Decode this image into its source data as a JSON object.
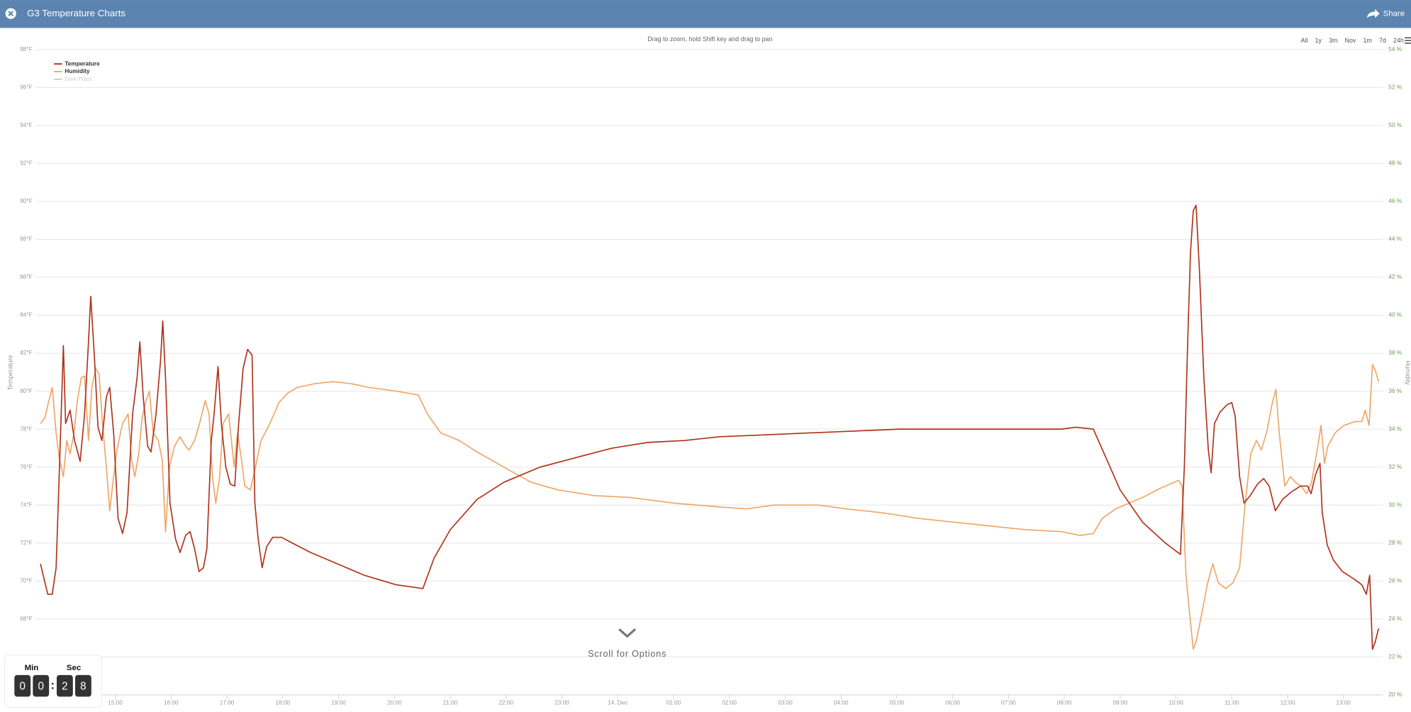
{
  "header": {
    "title": "G3 Temperature Charts",
    "share": "Share"
  },
  "range_buttons": [
    "All",
    "1y",
    "3m",
    "Nov",
    "1m",
    "7d",
    "24h"
  ],
  "scroll_hint": "Scroll for Options",
  "timer": {
    "min_label": "Min",
    "sec_label": "Sec",
    "digits": [
      "0",
      "0",
      "2",
      "8"
    ]
  },
  "chart_data": {
    "type": "line",
    "subtitle": "Drag to zoom, hold Shift key and drag to pan",
    "y_label": "Temperature",
    "y2_label": "Humidity",
    "grid": true,
    "legend": "top-left",
    "xlim": [
      13.66,
      37.63
    ],
    "xticks": [
      {
        "value": 15,
        "label": "15:00"
      },
      {
        "value": 16,
        "label": "16:00"
      },
      {
        "value": 17,
        "label": "17:00"
      },
      {
        "value": 18,
        "label": "18:00"
      },
      {
        "value": 19,
        "label": "19:00"
      },
      {
        "value": 20,
        "label": "20:00"
      },
      {
        "value": 21,
        "label": "21:00"
      },
      {
        "value": 22,
        "label": "22:00"
      },
      {
        "value": 23,
        "label": "23:00"
      },
      {
        "value": 24,
        "label": "14. Dec"
      },
      {
        "value": 25,
        "label": "01:00"
      },
      {
        "value": 26,
        "label": "02:00"
      },
      {
        "value": 27,
        "label": "03:00"
      },
      {
        "value": 28,
        "label": "04:00"
      },
      {
        "value": 29,
        "label": "05:00"
      },
      {
        "value": 30,
        "label": "06:00"
      },
      {
        "value": 31,
        "label": "07:00"
      },
      {
        "value": 32,
        "label": "08:00"
      },
      {
        "value": 33,
        "label": "09:00"
      },
      {
        "value": 34,
        "label": "10:00"
      },
      {
        "value": 35,
        "label": "11:00"
      },
      {
        "value": 36,
        "label": "12:00"
      },
      {
        "value": 37,
        "label": "13:00"
      }
    ],
    "ylim": [
      64,
      98
    ],
    "yticks": [
      {
        "value": 68,
        "label": "68°F"
      },
      {
        "value": 70,
        "label": "70°F"
      },
      {
        "value": 72,
        "label": "72°F"
      },
      {
        "value": 74,
        "label": "74°F"
      },
      {
        "value": 76,
        "label": "76°F"
      },
      {
        "value": 78,
        "label": "78°F"
      },
      {
        "value": 80,
        "label": "80°F"
      },
      {
        "value": 82,
        "label": "82°F"
      },
      {
        "value": 84,
        "label": "84°F"
      },
      {
        "value": 86,
        "label": "86°F"
      },
      {
        "value": 88,
        "label": "88°F"
      },
      {
        "value": 90,
        "label": "90°F"
      },
      {
        "value": 92,
        "label": "92°F"
      },
      {
        "value": 94,
        "label": "94°F"
      },
      {
        "value": 96,
        "label": "96°F"
      },
      {
        "value": 98,
        "label": "98°F"
      }
    ],
    "y2lim": [
      20,
      54
    ],
    "y2ticks": [
      {
        "value": 20,
        "label": "20 %"
      },
      {
        "value": 22,
        "label": "22 %"
      },
      {
        "value": 24,
        "label": "24 %"
      },
      {
        "value": 26,
        "label": "26 %"
      },
      {
        "value": 28,
        "label": "28 %"
      },
      {
        "value": 30,
        "label": "30 %"
      },
      {
        "value": 32,
        "label": "32 %"
      },
      {
        "value": 34,
        "label": "34 %"
      },
      {
        "value": 36,
        "label": "36 %"
      },
      {
        "value": 38,
        "label": "38 %"
      },
      {
        "value": 40,
        "label": "40 %"
      },
      {
        "value": 42,
        "label": "42 %"
      },
      {
        "value": 44,
        "label": "44 %"
      },
      {
        "value": 46,
        "label": "46 %"
      },
      {
        "value": 48,
        "label": "48 %"
      },
      {
        "value": 50,
        "label": "50 %"
      },
      {
        "value": 52,
        "label": "52 %"
      },
      {
        "value": 54,
        "label": "54 %"
      }
    ],
    "series": [
      {
        "name": "Temperature",
        "color": "#b0301a",
        "axis": "y",
        "x": [
          13.66,
          13.79,
          13.87,
          13.94,
          14.0,
          14.07,
          14.11,
          14.19,
          14.27,
          14.37,
          14.45,
          14.52,
          14.56,
          14.63,
          14.69,
          14.76,
          14.84,
          14.9,
          14.97,
          15.05,
          15.13,
          15.21,
          15.31,
          15.39,
          15.44,
          15.5,
          15.58,
          15.64,
          15.73,
          15.81,
          15.85,
          15.9,
          15.98,
          16.08,
          16.16,
          16.26,
          16.34,
          16.42,
          16.5,
          16.58,
          16.64,
          16.72,
          16.77,
          16.84,
          16.9,
          16.98,
          17.06,
          17.14,
          17.21,
          17.29,
          17.37,
          17.45,
          17.5,
          17.56,
          17.63,
          17.71,
          17.82,
          17.98,
          18.17,
          18.5,
          18.98,
          19.46,
          20.03,
          20.51,
          20.71,
          21.0,
          21.48,
          21.96,
          22.61,
          23.25,
          23.9,
          24.54,
          25.19,
          25.83,
          26.64,
          27.44,
          28.25,
          29.05,
          29.86,
          30.66,
          31.47,
          31.95,
          32.2,
          32.52,
          32.76,
          33.0,
          33.4,
          33.81,
          34.08,
          34.15,
          34.21,
          34.26,
          34.31,
          34.36,
          34.42,
          34.5,
          34.58,
          34.63,
          34.69,
          34.79,
          34.92,
          35.0,
          35.06,
          35.14,
          35.22,
          35.33,
          35.46,
          35.57,
          35.67,
          35.78,
          35.91,
          36.07,
          36.23,
          36.36,
          36.42,
          36.5,
          36.58,
          36.62,
          36.71,
          36.82,
          36.98,
          37.19,
          37.33,
          37.41,
          37.47,
          37.52,
          37.57,
          37.63
        ],
        "values": [
          70.9,
          69.3,
          69.3,
          70.7,
          76.0,
          82.4,
          78.3,
          79.0,
          77.4,
          76.3,
          78.8,
          82.6,
          85.0,
          81.6,
          78.1,
          77.4,
          79.7,
          80.2,
          77.8,
          73.3,
          72.5,
          73.6,
          78.8,
          80.7,
          82.6,
          79.7,
          77.1,
          76.8,
          78.8,
          81.6,
          83.7,
          80.7,
          74.1,
          72.2,
          71.5,
          72.4,
          72.6,
          71.7,
          70.5,
          70.7,
          71.7,
          77.4,
          78.8,
          81.3,
          78.3,
          76.0,
          75.1,
          75.0,
          78.3,
          81.2,
          82.2,
          81.9,
          74.1,
          72.2,
          70.7,
          71.8,
          72.3,
          72.3,
          72.0,
          71.5,
          70.9,
          70.3,
          69.8,
          69.6,
          71.2,
          72.7,
          74.3,
          75.2,
          76.0,
          76.5,
          77.0,
          77.3,
          77.4,
          77.6,
          77.7,
          77.8,
          77.9,
          78.0,
          78.0,
          78.0,
          78.0,
          78.0,
          78.1,
          78.0,
          76.4,
          74.8,
          73.1,
          72.0,
          71.4,
          76.0,
          82.6,
          87.3,
          89.5,
          89.8,
          86.4,
          80.7,
          76.9,
          75.7,
          78.3,
          78.9,
          79.3,
          79.4,
          78.7,
          75.5,
          74.1,
          74.5,
          75.1,
          75.4,
          75.0,
          73.7,
          74.3,
          74.7,
          75.0,
          75.0,
          74.6,
          75.6,
          76.2,
          73.6,
          71.9,
          71.1,
          70.5,
          70.1,
          69.8,
          69.3,
          70.3,
          66.4,
          66.8,
          67.5
        ]
      },
      {
        "name": "Humidity",
        "color": "#eda665",
        "axis": "y2",
        "x": [
          13.66,
          13.74,
          13.81,
          13.87,
          13.94,
          14.0,
          14.07,
          14.13,
          14.19,
          14.26,
          14.32,
          14.39,
          14.45,
          14.52,
          14.58,
          14.65,
          14.71,
          14.77,
          14.84,
          14.9,
          14.97,
          15.03,
          15.13,
          15.23,
          15.29,
          15.35,
          15.42,
          15.48,
          15.55,
          15.61,
          15.68,
          15.77,
          15.84,
          15.9,
          15.97,
          16.06,
          16.16,
          16.26,
          16.32,
          16.42,
          16.51,
          16.61,
          16.68,
          16.74,
          16.8,
          16.87,
          16.93,
          17.03,
          17.13,
          17.19,
          17.26,
          17.32,
          17.42,
          17.51,
          17.61,
          17.77,
          17.93,
          18.09,
          18.26,
          18.58,
          18.9,
          19.22,
          19.54,
          20.03,
          20.43,
          20.59,
          20.83,
          21.16,
          21.48,
          21.96,
          22.45,
          22.93,
          23.57,
          24.22,
          25.02,
          25.83,
          26.31,
          26.8,
          27.6,
          28.09,
          28.73,
          29.38,
          30.02,
          30.66,
          31.31,
          31.95,
          32.28,
          32.52,
          32.68,
          32.92,
          33.4,
          33.73,
          34.05,
          34.11,
          34.18,
          34.24,
          34.31,
          34.37,
          34.47,
          34.56,
          34.66,
          34.76,
          34.89,
          35.02,
          35.14,
          35.24,
          35.34,
          35.44,
          35.53,
          35.63,
          35.72,
          35.79,
          35.85,
          35.95,
          36.05,
          36.14,
          36.24,
          36.34,
          36.43,
          36.53,
          36.6,
          36.66,
          36.72,
          36.85,
          37.01,
          37.21,
          37.33,
          37.39,
          37.46,
          37.52,
          37.57,
          37.63
        ],
        "values": [
          34.3,
          34.6,
          35.5,
          36.2,
          33.8,
          32.4,
          31.5,
          33.4,
          32.7,
          33.8,
          35.5,
          36.7,
          36.8,
          33.4,
          36.2,
          37.2,
          36.9,
          34.3,
          32.0,
          29.7,
          31.5,
          32.9,
          34.3,
          34.8,
          32.4,
          31.5,
          32.7,
          34.6,
          35.5,
          36.0,
          33.8,
          33.4,
          32.4,
          28.6,
          32.0,
          33.1,
          33.6,
          33.1,
          32.9,
          33.4,
          34.3,
          35.5,
          34.8,
          31.5,
          30.1,
          31.5,
          34.3,
          34.8,
          32.0,
          33.8,
          32.4,
          31.0,
          30.8,
          32.0,
          33.4,
          34.3,
          35.4,
          35.9,
          36.2,
          36.4,
          36.5,
          36.4,
          36.2,
          36.0,
          35.8,
          34.8,
          33.8,
          33.4,
          32.8,
          32.0,
          31.2,
          30.8,
          30.5,
          30.4,
          30.1,
          29.9,
          29.8,
          30.0,
          30.0,
          29.8,
          29.6,
          29.3,
          29.1,
          28.9,
          28.7,
          28.6,
          28.4,
          28.5,
          29.3,
          29.8,
          30.4,
          30.9,
          31.3,
          31.0,
          26.3,
          24.4,
          22.4,
          22.9,
          24.4,
          25.8,
          26.9,
          25.9,
          25.6,
          25.9,
          26.7,
          30.1,
          32.7,
          33.4,
          32.9,
          33.9,
          35.3,
          36.1,
          33.8,
          31.0,
          31.5,
          31.2,
          31.0,
          30.6,
          31.2,
          32.9,
          34.2,
          32.2,
          33.1,
          33.8,
          34.2,
          34.4,
          34.4,
          35.0,
          34.2,
          37.4,
          37.1,
          36.5
        ]
      },
      {
        "name": "Dew Point",
        "color": "#cccccc",
        "visible": false
      }
    ]
  }
}
